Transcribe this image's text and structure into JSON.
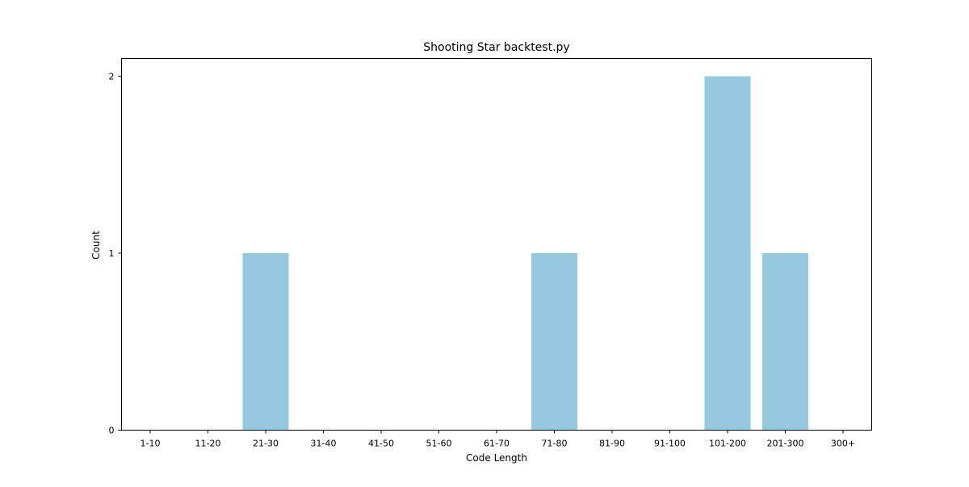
{
  "chart_data": {
    "type": "bar",
    "title": "Shooting Star backtest.py",
    "xlabel": "Code Length",
    "ylabel": "Count",
    "categories": [
      "1-10",
      "11-20",
      "21-30",
      "31-40",
      "41-50",
      "51-60",
      "61-70",
      "71-80",
      "81-90",
      "91-100",
      "101-200",
      "201-300",
      "300+"
    ],
    "values": [
      0,
      0,
      1,
      0,
      0,
      0,
      0,
      1,
      0,
      0,
      2,
      1,
      0
    ],
    "ylim": [
      0,
      2.1
    ],
    "yticks": [
      0,
      1,
      2
    ],
    "grid": false,
    "legend": "none",
    "bar_color": "#96c9dd"
  }
}
